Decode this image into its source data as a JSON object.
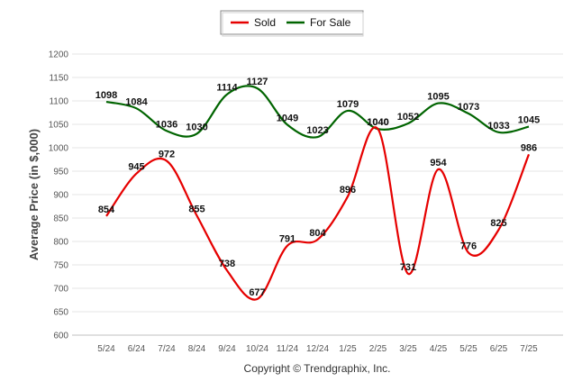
{
  "chart_data": {
    "type": "line",
    "title": "",
    "xlabel": "",
    "ylabel": "Average Price (in $,000)",
    "categories": [
      "5/24",
      "6/24",
      "7/24",
      "8/24",
      "9/24",
      "10/24",
      "11/24",
      "12/24",
      "1/25",
      "2/25",
      "3/25",
      "4/25",
      "5/25",
      "6/25",
      "7/25"
    ],
    "ylim": [
      600,
      1200
    ],
    "yticks": [
      600,
      650,
      700,
      750,
      800,
      850,
      900,
      950,
      1000,
      1050,
      1100,
      1150,
      1200
    ],
    "grid": true,
    "legend_position": "top-center",
    "series": [
      {
        "name": "Sold",
        "color": "#e60000",
        "values": [
          854,
          945,
          972,
          855,
          738,
          677,
          791,
          804,
          896,
          1040,
          731,
          954,
          776,
          825,
          986
        ]
      },
      {
        "name": "For Sale",
        "color": "#006400",
        "values": [
          1098,
          1084,
          1036,
          1030,
          1114,
          1127,
          1049,
          1023,
          1079,
          1040,
          1052,
          1095,
          1073,
          1033,
          1045
        ]
      }
    ],
    "credit": "Copyright © Trendgraphix, Inc."
  }
}
